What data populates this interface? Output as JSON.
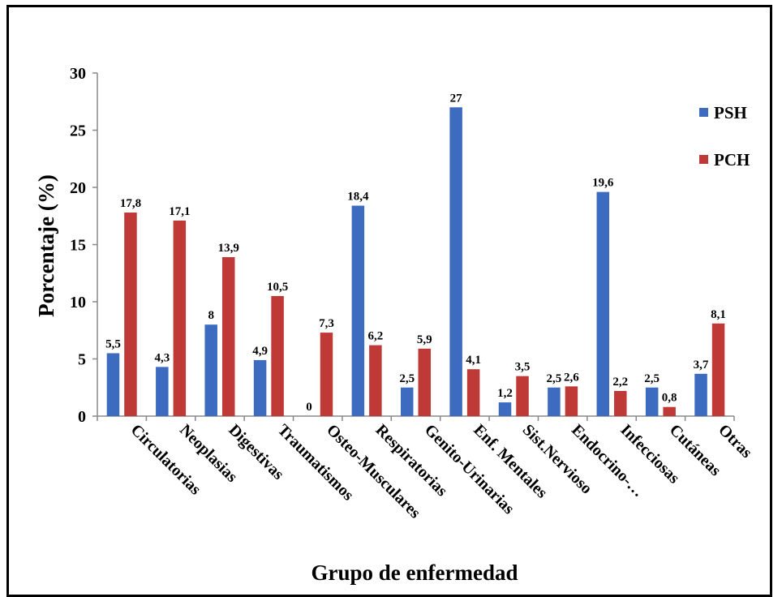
{
  "chart_data": {
    "type": "bar",
    "title": "",
    "xlabel": "Grupo de enfermedad",
    "ylabel": "Porcentaje (%)",
    "ylim": [
      0,
      30
    ],
    "yticks": [
      "0",
      "5",
      "10",
      "15",
      "20",
      "25",
      "30"
    ],
    "grid": false,
    "legend_position": "top-right",
    "categories": [
      "Circulatorias",
      "Neoplasias",
      "Digestivas",
      "Traumatismos",
      "Osteo-Musculares",
      "Respiratorias",
      "Genito-Urinarias",
      "Enf. Mentales",
      "Sist.Nervioso",
      "Endocrino-…",
      "Infecciosas",
      "Cutáneas",
      "Otras"
    ],
    "series": [
      {
        "name": "PSH",
        "color": "#3c6bbf",
        "values": [
          5.5,
          4.3,
          8,
          4.9,
          0,
          18.4,
          2.5,
          27,
          1.2,
          2.5,
          19.6,
          2.5,
          3.7
        ],
        "labels": [
          "5,5",
          "4,3",
          "8",
          "4,9",
          "0",
          "18,4",
          "2,5",
          "27",
          "1,2",
          "2,5",
          "19,6",
          "2,5",
          "3,7"
        ]
      },
      {
        "name": "PCH",
        "color": "#bf3a37",
        "values": [
          17.8,
          17.1,
          13.9,
          10.5,
          7.3,
          6.2,
          5.9,
          4.1,
          3.5,
          2.6,
          2.2,
          0.8,
          8.1
        ],
        "labels": [
          "17,8",
          "17,1",
          "13,9",
          "10,5",
          "7,3",
          "6,2",
          "5,9",
          "4,1",
          "3,5",
          "2,6",
          "2,2",
          "0,8",
          "8,1"
        ]
      }
    ]
  }
}
